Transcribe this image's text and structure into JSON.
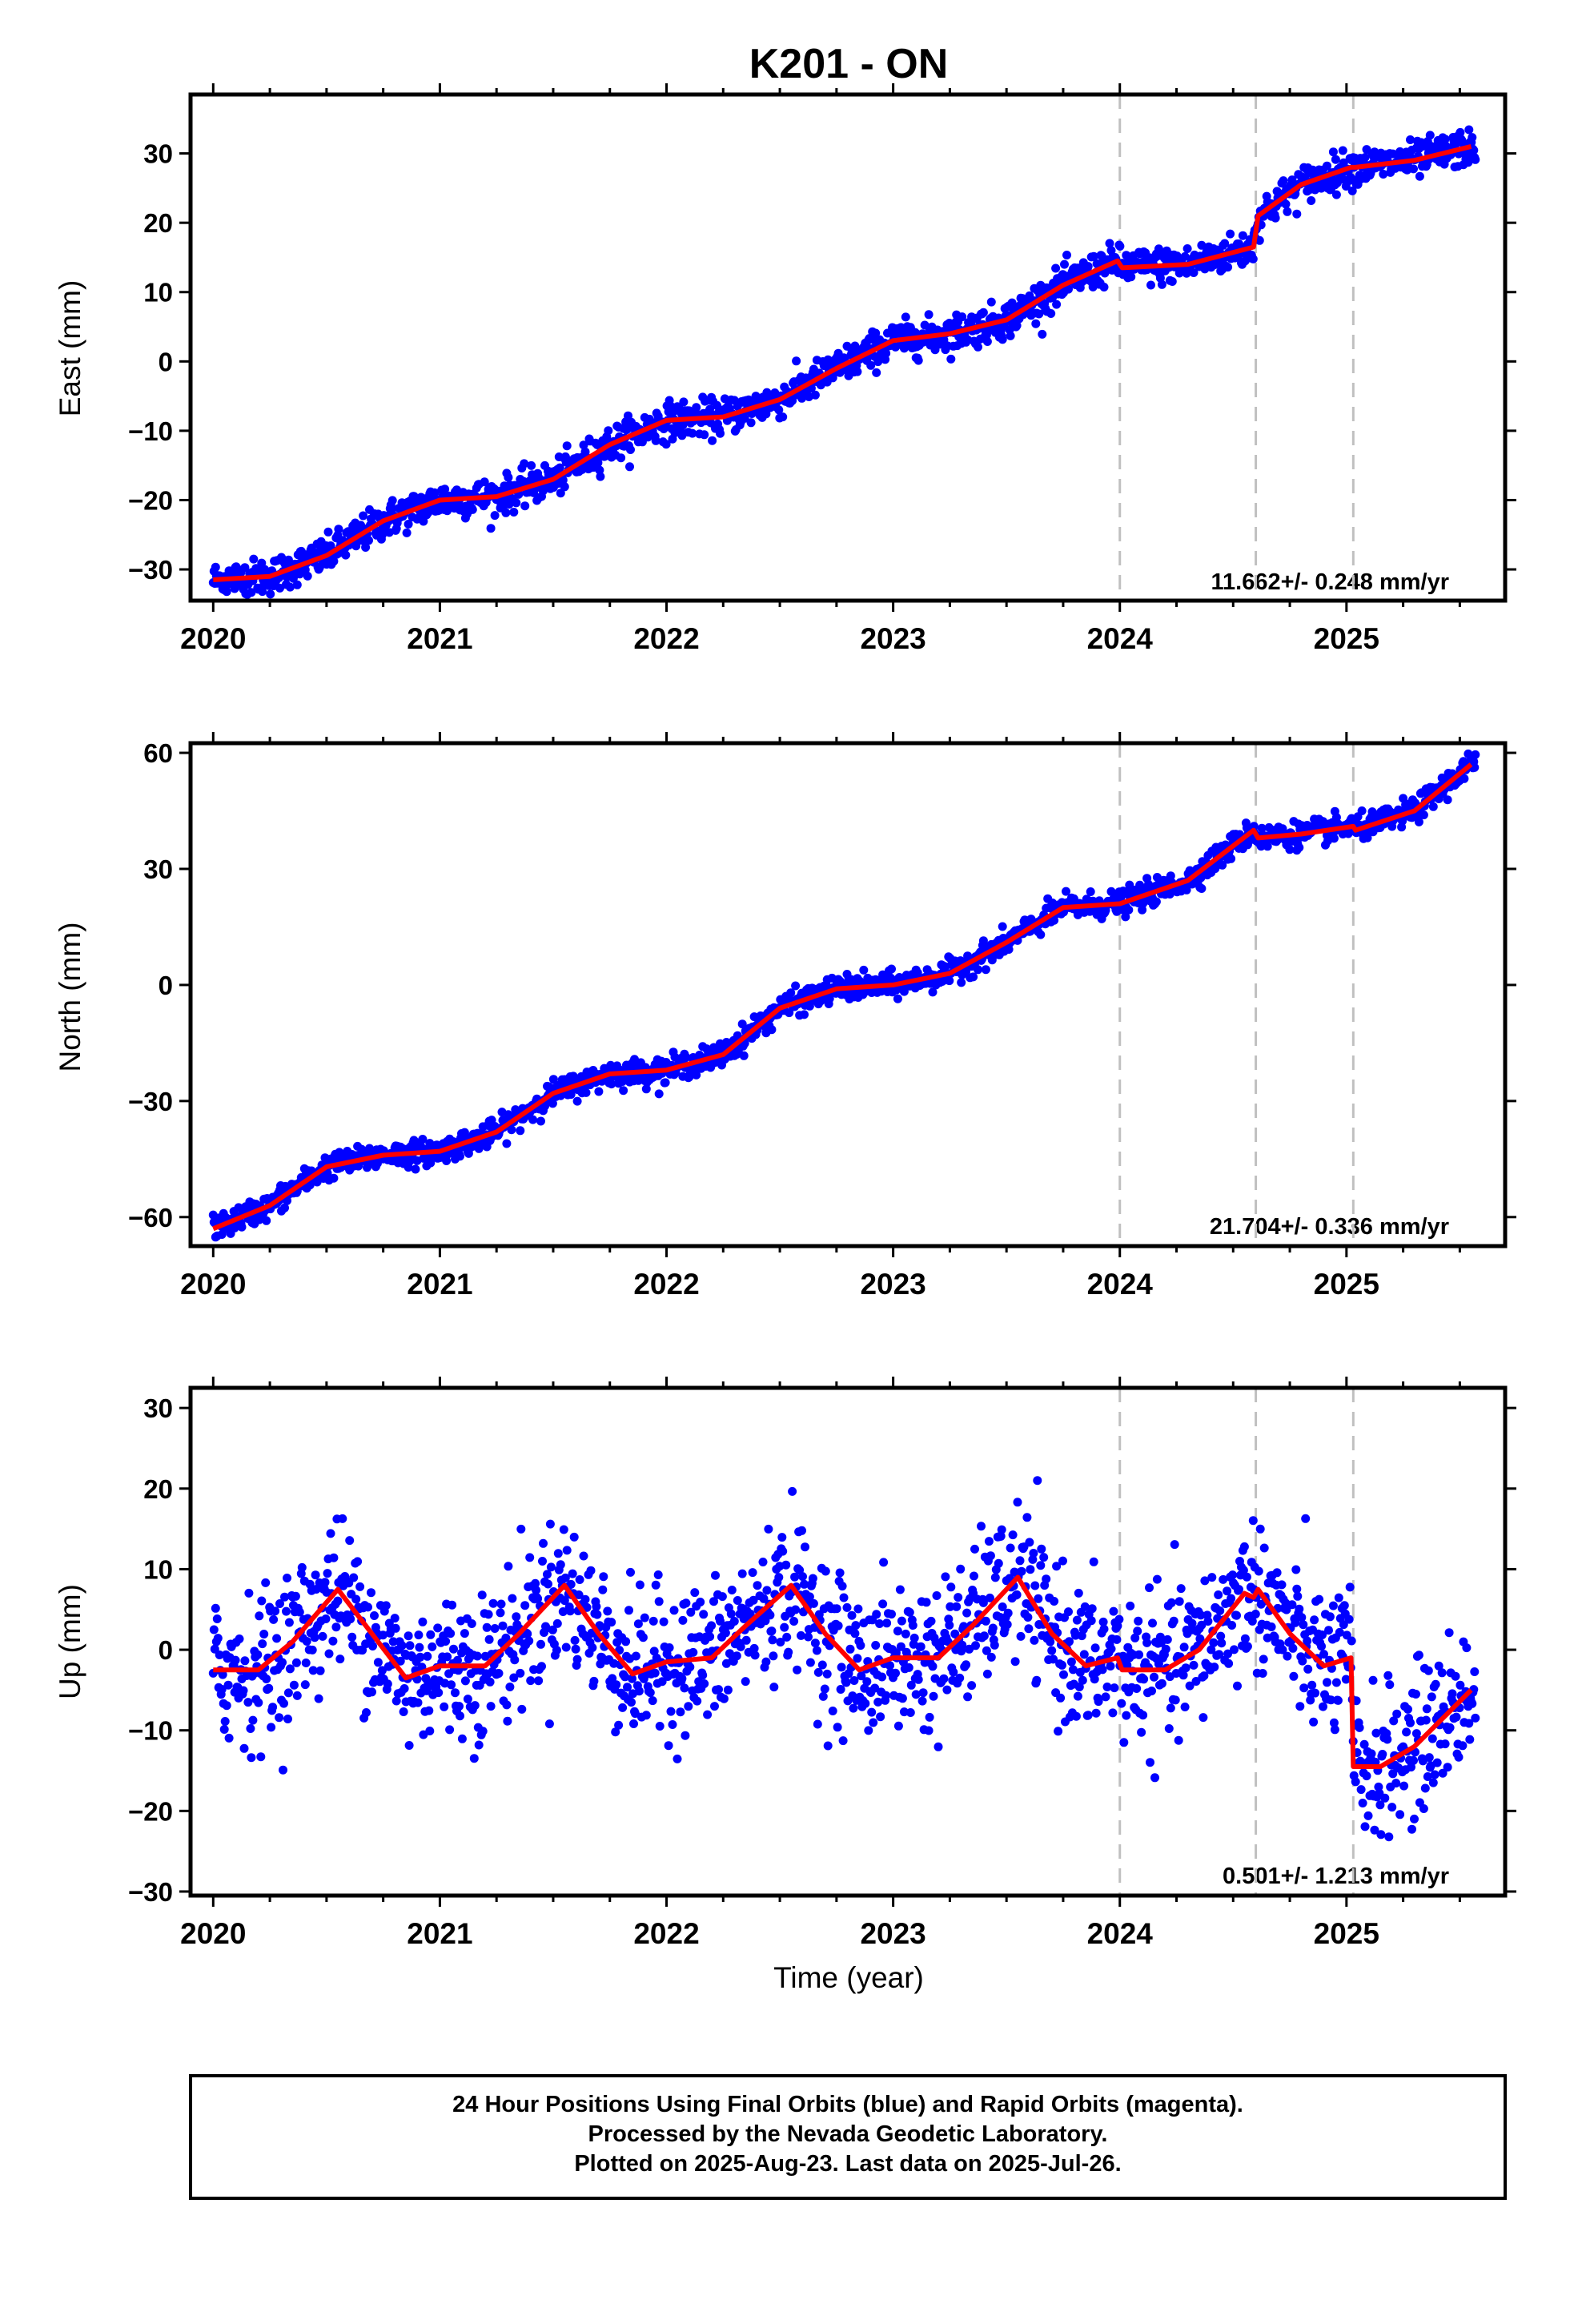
{
  "colors": {
    "data_points": "#0000ff",
    "model_line": "#ff0000",
    "event_lines": "#c0c0c0",
    "frame": "#000000"
  },
  "chart_data": {
    "title": "K201 - ON",
    "type": "scatter",
    "x_ticks": [
      "2020",
      "2021",
      "2022",
      "2023",
      "2024",
      "2025"
    ],
    "xlim": [
      2019.9,
      2025.7
    ],
    "xlabel": "Time (year)",
    "event_epochs": [
      2024.0,
      2024.6,
      2025.03
    ],
    "panels": [
      {
        "ylabel": "East (mm)",
        "ylim": [
          -34.5,
          38.5
        ],
        "yticks": [
          -30,
          -20,
          -10,
          0,
          10,
          20,
          30
        ],
        "rate_label": "11.662+/- 0.248 mm/yr",
        "model": {
          "x": [
            2020.0,
            2020.25,
            2020.5,
            2020.75,
            2021.0,
            2021.25,
            2021.5,
            2021.75,
            2022.0,
            2022.25,
            2022.5,
            2022.75,
            2023.0,
            2023.25,
            2023.5,
            2023.75,
            2023.99,
            2024.01,
            2024.3,
            2024.59,
            2024.61,
            2024.8,
            2025.02,
            2025.04,
            2025.3,
            2025.55
          ],
          "y": [
            -31.5,
            -31,
            -28,
            -23,
            -20,
            -19.5,
            -17,
            -12,
            -8.5,
            -8,
            -5.5,
            -1,
            3,
            4,
            6,
            11,
            14.5,
            13.5,
            14,
            16.5,
            21,
            25.5,
            28,
            28,
            29,
            31
          ]
        },
        "points_note": "daily position scatter",
        "points": {
          "noise": 1.3
        }
      },
      {
        "ylabel": "North (mm)",
        "ylim": [
          -67.5,
          62.5
        ],
        "yticks": [
          -60,
          -30,
          0,
          30,
          60
        ],
        "rate_label": "21.704+/- 0.336 mm/yr",
        "model": {
          "x": [
            2020.0,
            2020.25,
            2020.5,
            2020.75,
            2021.0,
            2021.25,
            2021.5,
            2021.75,
            2022.0,
            2022.25,
            2022.5,
            2022.75,
            2023.0,
            2023.25,
            2023.5,
            2023.75,
            2024.0,
            2024.3,
            2024.59,
            2024.61,
            2024.8,
            2025.03,
            2025.04,
            2025.3,
            2025.55
          ],
          "y": [
            -63,
            -57,
            -47,
            -44,
            -43,
            -38,
            -28,
            -23,
            -22,
            -18,
            -6,
            -1,
            0,
            3,
            11,
            20,
            21,
            27,
            40,
            38,
            39,
            41,
            40,
            45,
            57
          ]
        },
        "points": {
          "noise": 1.6
        }
      },
      {
        "ylabel": "Up (mm)",
        "ylim": [
          -30.5,
          32.5
        ],
        "yticks": [
          -30,
          -20,
          -10,
          0,
          10,
          20,
          30
        ],
        "rate_label": "0.501+/- 1.213 mm/yr",
        "model": {
          "x": [
            2020.0,
            2020.2,
            2020.35,
            2020.55,
            2020.7,
            2020.85,
            2021.0,
            2021.2,
            2021.35,
            2021.55,
            2021.7,
            2021.85,
            2022.0,
            2022.2,
            2022.35,
            2022.55,
            2022.7,
            2022.85,
            2023.0,
            2023.2,
            2023.35,
            2023.55,
            2023.7,
            2023.85,
            2023.99,
            2024.01,
            2024.2,
            2024.35,
            2024.55,
            2024.59,
            2024.61,
            2024.75,
            2024.9,
            2025.02,
            2025.03,
            2025.15,
            2025.3,
            2025.55
          ],
          "y": [
            -2.5,
            -2.5,
            1,
            7.5,
            2,
            -3.5,
            -2,
            -2,
            2,
            8,
            2,
            -3,
            -1.5,
            -1,
            3,
            8,
            2,
            -2.5,
            -1,
            -1,
            3,
            9,
            2,
            -2,
            -1,
            -2.5,
            -2.5,
            0,
            7,
            6.5,
            7.5,
            2,
            -2,
            -1,
            -14.5,
            -14.5,
            -12,
            -5
          ]
        },
        "points": {
          "noise": 4.5
        }
      }
    ]
  },
  "footer": {
    "line1": "24 Hour Positions Using Final Orbits (blue) and Rapid Orbits (magenta).",
    "line2": "Processed by the Nevada Geodetic Laboratory.",
    "line3": "Plotted on 2025-Aug-23. Last data on 2025-Jul-26."
  }
}
